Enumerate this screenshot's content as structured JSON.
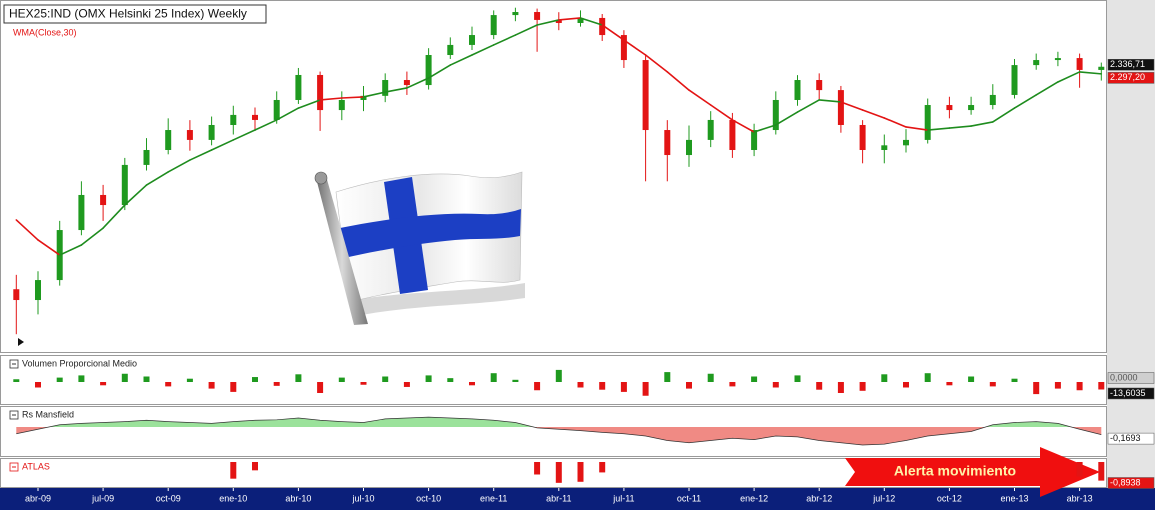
{
  "chart_data": {
    "type": "candlestick",
    "title": "HEX25:IND (OMX Helsinki 25 Index) Weekly",
    "categories": [
      null,
      "abr-09",
      null,
      null,
      "jul-09",
      null,
      null,
      "oct-09",
      null,
      null,
      "ene-10",
      null,
      null,
      "abr-10",
      null,
      null,
      "jul-10",
      null,
      null,
      "oct-10",
      null,
      null,
      "ene-11",
      null,
      null,
      "abr-11",
      null,
      null,
      "jul-11",
      null,
      null,
      "oct-11",
      null,
      null,
      "ene-12",
      null,
      null,
      "abr-12",
      null,
      null,
      "jul-12",
      null,
      null,
      "oct-12",
      null,
      null,
      "ene-13",
      null,
      null,
      "abr-13",
      null
    ],
    "open": [
      1100,
      1040,
      1151,
      1429,
      1624,
      1568,
      1791,
      1874,
      1985,
      1930,
      2013,
      2069,
      2041,
      2152,
      2291,
      2096,
      2152,
      2175,
      2263,
      2235,
      2402,
      2458,
      2513,
      2624,
      2641,
      2597,
      2580,
      2608,
      2513,
      2374,
      1985,
      1846,
      1930,
      2041,
      1874,
      1985,
      2152,
      2263,
      2207,
      2013,
      1874,
      1900,
      1930,
      2124,
      2096,
      2124,
      2180,
      2346,
      2374,
      2385,
      2319
    ],
    "high": [
      1180,
      1200,
      1480,
      1700,
      1680,
      1830,
      1940,
      2050,
      2040,
      2060,
      2120,
      2110,
      2200,
      2330,
      2310,
      2200,
      2230,
      2300,
      2310,
      2440,
      2500,
      2560,
      2650,
      2665,
      2660,
      2640,
      2650,
      2630,
      2540,
      2400,
      2040,
      2010,
      2090,
      2080,
      2020,
      2200,
      2290,
      2300,
      2230,
      2040,
      1960,
      1990,
      2160,
      2170,
      2170,
      2240,
      2380,
      2410,
      2420,
      2410,
      2360
    ],
    "low": [
      850,
      960,
      1120,
      1400,
      1480,
      1540,
      1760,
      1850,
      1870,
      1900,
      1960,
      1980,
      2020,
      2130,
      1980,
      2040,
      2090,
      2140,
      2180,
      2210,
      2380,
      2430,
      2490,
      2590,
      2420,
      2540,
      2560,
      2480,
      2330,
      1700,
      1700,
      1780,
      1890,
      1830,
      1840,
      1960,
      2120,
      2150,
      1970,
      1800,
      1800,
      1860,
      1910,
      2050,
      2070,
      2100,
      2160,
      2320,
      2340,
      2220,
      2260
    ],
    "close": [
      1040,
      1151,
      1429,
      1624,
      1568,
      1791,
      1874,
      1985,
      1930,
      2013,
      2069,
      2041,
      2152,
      2291,
      2096,
      2152,
      2175,
      2263,
      2235,
      2402,
      2458,
      2513,
      2624,
      2641,
      2597,
      2580,
      2608,
      2513,
      2374,
      1985,
      1846,
      1930,
      2041,
      1874,
      1985,
      2152,
      2263,
      2207,
      2013,
      1874,
      1900,
      1930,
      2124,
      2096,
      2124,
      2180,
      2346,
      2374,
      2385,
      2319,
      2336.71
    ],
    "value_labels": [
      null,
      null,
      null,
      null,
      null,
      null,
      null,
      null,
      null,
      null,
      null,
      null,
      null,
      null,
      null,
      null,
      null,
      null,
      null,
      null,
      null,
      null,
      null,
      null,
      null,
      null,
      null,
      null,
      null,
      null,
      null,
      null,
      null,
      null,
      null,
      null,
      null,
      null,
      null,
      null,
      null,
      null,
      null,
      null,
      null,
      null,
      null,
      null,
      null,
      null,
      "2.336,71"
    ],
    "up_color": "#1f9a1f",
    "down_color": "#e31414",
    "ylim": [
      790,
      2680
    ],
    "series": [
      {
        "name": "WMA(Close,30)",
        "color_above": "#e31414",
        "color_below": "#1e8c1e",
        "values": [
          1485,
          1374,
          1290,
          1346,
          1440,
          1568,
          1679,
          1752,
          1818,
          1874,
          1930,
          1985,
          2041,
          2107,
          2152,
          2163,
          2169,
          2196,
          2219,
          2274,
          2346,
          2402,
          2458,
          2513,
          2569,
          2597,
          2608,
          2569,
          2485,
          2402,
          2308,
          2207,
          2124,
          2041,
          1974,
          2013,
          2085,
          2152,
          2141,
          2096,
          2052,
          2002,
          1985,
          1996,
          2007,
          2030,
          2107,
          2180,
          2252,
          2308,
          2297.2
        ],
        "value_labels": [
          null,
          null,
          null,
          null,
          null,
          null,
          null,
          null,
          null,
          null,
          null,
          null,
          null,
          null,
          null,
          null,
          null,
          null,
          null,
          null,
          null,
          null,
          null,
          null,
          null,
          null,
          null,
          null,
          null,
          null,
          null,
          null,
          null,
          null,
          null,
          null,
          null,
          null,
          null,
          null,
          null,
          null,
          null,
          null,
          null,
          null,
          null,
          null,
          null,
          null,
          "2.297,20"
        ]
      }
    ],
    "panels": [
      {
        "type": "bar",
        "name": "Volumen Proporcional Medio",
        "pos_color": "#1f9a1f",
        "neg_color": "#e31414",
        "ylim": [
          -40,
          40
        ],
        "ref": {
          "value": 0,
          "label": "0,0000"
        },
        "values": [
          5,
          -10,
          8,
          12,
          -6,
          15,
          10,
          -8,
          6,
          -12,
          -18,
          9,
          -7,
          14,
          -20,
          8,
          -5,
          10,
          -9,
          12,
          7,
          -6,
          16,
          4,
          -15,
          22,
          -10,
          -14,
          -18,
          -25,
          18,
          -12,
          15,
          -8,
          10,
          -10,
          12,
          -14,
          -20,
          -16,
          14,
          -10,
          16,
          -6,
          10,
          -8,
          6,
          -22,
          -12,
          -15,
          -13.6035
        ],
        "value_labels": [
          null,
          null,
          null,
          null,
          null,
          null,
          null,
          null,
          null,
          null,
          null,
          null,
          null,
          null,
          null,
          null,
          null,
          null,
          null,
          null,
          null,
          null,
          null,
          null,
          null,
          null,
          null,
          null,
          null,
          null,
          null,
          null,
          null,
          null,
          null,
          null,
          null,
          null,
          null,
          null,
          null,
          null,
          null,
          null,
          null,
          null,
          null,
          null,
          null,
          null,
          "-13,6035"
        ]
      },
      {
        "type": "area",
        "name": "Rs Mansfield",
        "pos_color": "#9be29b",
        "neg_color": "#f08a84",
        "ylim": [
          -0.6,
          0.4
        ],
        "values": [
          -0.15,
          -0.05,
          0.05,
          0.08,
          0.1,
          0.12,
          0.15,
          0.12,
          0.1,
          0.08,
          0.12,
          0.15,
          0.16,
          0.2,
          0.15,
          0.12,
          0.1,
          0.18,
          0.2,
          0.22,
          0.2,
          0.18,
          0.15,
          0.1,
          -0.02,
          -0.05,
          -0.08,
          -0.12,
          -0.15,
          -0.2,
          -0.3,
          -0.35,
          -0.3,
          -0.25,
          -0.28,
          -0.2,
          -0.22,
          -0.3,
          -0.35,
          -0.4,
          -0.38,
          -0.3,
          -0.2,
          -0.15,
          -0.1,
          0.05,
          0.1,
          0.12,
          0.08,
          -0.05,
          -0.1693
        ],
        "value_labels": [
          null,
          null,
          null,
          null,
          null,
          null,
          null,
          null,
          null,
          null,
          null,
          null,
          null,
          null,
          null,
          null,
          null,
          null,
          null,
          null,
          null,
          null,
          null,
          null,
          null,
          null,
          null,
          null,
          null,
          null,
          null,
          null,
          null,
          null,
          null,
          null,
          null,
          null,
          null,
          null,
          null,
          null,
          null,
          null,
          null,
          null,
          null,
          null,
          null,
          null,
          "-0,1693"
        ]
      },
      {
        "type": "bar",
        "name": "ATLAS",
        "pos_color": "#1f9a1f",
        "neg_color": "#e31414",
        "ylim": [
          -1.2,
          0
        ],
        "values": [
          0,
          0,
          0,
          0,
          0,
          0,
          0,
          0,
          0,
          0,
          -0.8,
          -0.4,
          0,
          0,
          0,
          0,
          0,
          0,
          0,
          0,
          0,
          0,
          0,
          0,
          -0.6,
          -1.0,
          -0.95,
          -0.5,
          0,
          0,
          0,
          0,
          0,
          0,
          0,
          0,
          0,
          0,
          0,
          0,
          0,
          0,
          0,
          0,
          0,
          0,
          0,
          0,
          0,
          -0.7,
          -0.8938
        ],
        "value_labels": [
          null,
          null,
          null,
          null,
          null,
          null,
          null,
          null,
          null,
          null,
          null,
          null,
          null,
          null,
          null,
          null,
          null,
          null,
          null,
          null,
          null,
          null,
          null,
          null,
          null,
          null,
          null,
          null,
          null,
          null,
          null,
          null,
          null,
          null,
          null,
          null,
          null,
          null,
          null,
          null,
          null,
          null,
          null,
          null,
          null,
          null,
          null,
          null,
          null,
          null,
          "-0,8938"
        ]
      }
    ],
    "annotation": "Alerta movimiento"
  }
}
